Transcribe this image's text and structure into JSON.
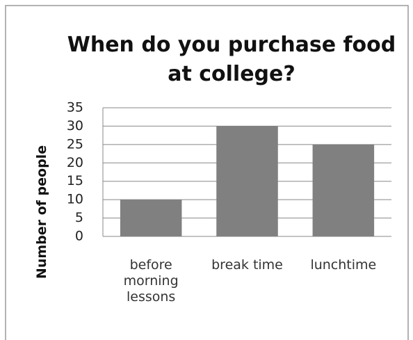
{
  "chart_data": {
    "type": "bar",
    "title": "When do you purchase food at college?",
    "y_label": "Number of people",
    "categories": [
      "before morning lessons",
      "break time",
      "lunchtime"
    ],
    "values": [
      10,
      30,
      25
    ],
    "color": "#808080",
    "ylim": [
      0,
      35
    ],
    "yticks": [
      0,
      5,
      10,
      15,
      20,
      25,
      30,
      35
    ],
    "grid": true
  }
}
